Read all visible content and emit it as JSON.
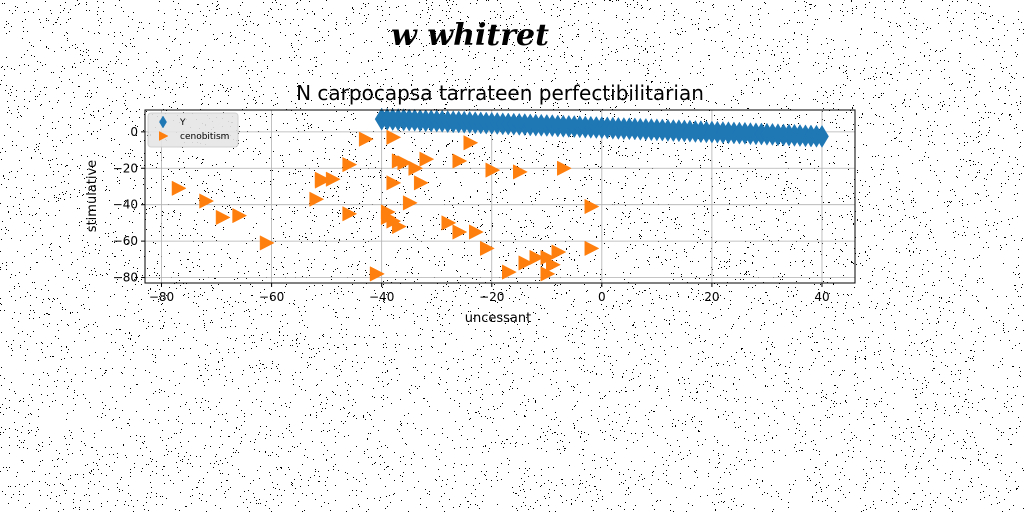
{
  "header": {
    "title": "w whitret"
  },
  "chart_data": {
    "type": "scatter",
    "title": "N carpocapsa tarrateen perfectibilitarian",
    "xlabel": "uncessant",
    "ylabel": "stimulative",
    "xlim": [
      -83,
      46
    ],
    "ylim": [
      -83,
      12
    ],
    "xticks": [
      -80,
      -60,
      -40,
      -20,
      0,
      20,
      40
    ],
    "yticks": [
      0,
      -20,
      -40,
      -60,
      -80
    ],
    "grid": true,
    "legend_position": "top-left",
    "series": [
      {
        "name": "Y",
        "color": "#1f77b4",
        "marker": "thin-diamond",
        "x": [
          -40,
          -39,
          -38,
          -37,
          -36,
          -35,
          -34,
          -33,
          -32,
          -31,
          -30,
          -29,
          -28,
          -27,
          -26,
          -25,
          -24,
          -23,
          -22,
          -21,
          -20,
          -19,
          -18,
          -17,
          -16,
          -15,
          -14,
          -13,
          -12,
          -11,
          -10,
          -9,
          -8,
          -7,
          -6,
          -5,
          -4,
          -3,
          -2,
          -1,
          0,
          1,
          2,
          3,
          4,
          5,
          6,
          7,
          8,
          9,
          10,
          11,
          12,
          13,
          14,
          15,
          16,
          17,
          18,
          19,
          20,
          21,
          22,
          23,
          24,
          25,
          26,
          27,
          28,
          29,
          30,
          31,
          32,
          33,
          34,
          35,
          36,
          37,
          38,
          39,
          40
        ],
        "y": [
          7.0,
          6.9,
          6.8,
          6.7,
          6.6,
          6.5,
          6.4,
          6.2,
          6.1,
          6.0,
          5.9,
          5.8,
          5.6,
          5.5,
          5.4,
          5.3,
          5.2,
          5.0,
          4.9,
          4.8,
          4.7,
          4.6,
          4.4,
          4.3,
          4.2,
          4.1,
          4.0,
          3.8,
          3.7,
          3.6,
          3.5,
          3.4,
          3.2,
          3.1,
          3.0,
          2.9,
          2.8,
          2.6,
          2.5,
          2.4,
          2.3,
          2.2,
          2.0,
          1.9,
          1.8,
          1.7,
          1.6,
          1.4,
          1.3,
          1.2,
          1.1,
          1.0,
          0.8,
          0.7,
          0.6,
          0.5,
          0.4,
          0.2,
          0.1,
          0.0,
          -0.1,
          -0.2,
          -0.4,
          -0.5,
          -0.6,
          -0.7,
          -0.8,
          -1.0,
          -1.1,
          -1.2,
          -1.3,
          -1.4,
          -1.6,
          -1.7,
          -1.8,
          -1.9,
          -2.0,
          -2.2,
          -2.3,
          -2.4,
          -2.5
        ]
      },
      {
        "name": "cenobitism",
        "color": "#ff7f0e",
        "marker": "triangle-right",
        "x": [
          -77,
          -72,
          -69,
          -66,
          -61,
          -52,
          -51,
          -51,
          -49,
          -46,
          -46,
          -43,
          -41,
          -39,
          -37,
          -34,
          -41,
          -39,
          -38,
          -37,
          -38,
          -36,
          -38,
          -37,
          -35,
          -33,
          -32,
          -26,
          -28,
          -26,
          -24,
          -23,
          -21,
          -20,
          -17,
          -15,
          -14,
          -12,
          -10,
          -10,
          -9,
          -8,
          -7,
          -2,
          -2
        ],
        "y": [
          -31,
          -38,
          -47,
          -46,
          -61,
          -37,
          -26,
          -27,
          -26,
          -18,
          -45,
          -4,
          -78,
          -44,
          -16,
          -20,
          -78,
          -47,
          -28,
          -52,
          -3,
          -17,
          -49,
          -16,
          -39,
          -28,
          -15,
          -16,
          -50,
          -55,
          -6,
          -55,
          -64,
          -21,
          -77,
          -22,
          -72,
          -69,
          -78,
          -69,
          -73,
          -66,
          -20,
          -41,
          -64
        ]
      }
    ]
  }
}
